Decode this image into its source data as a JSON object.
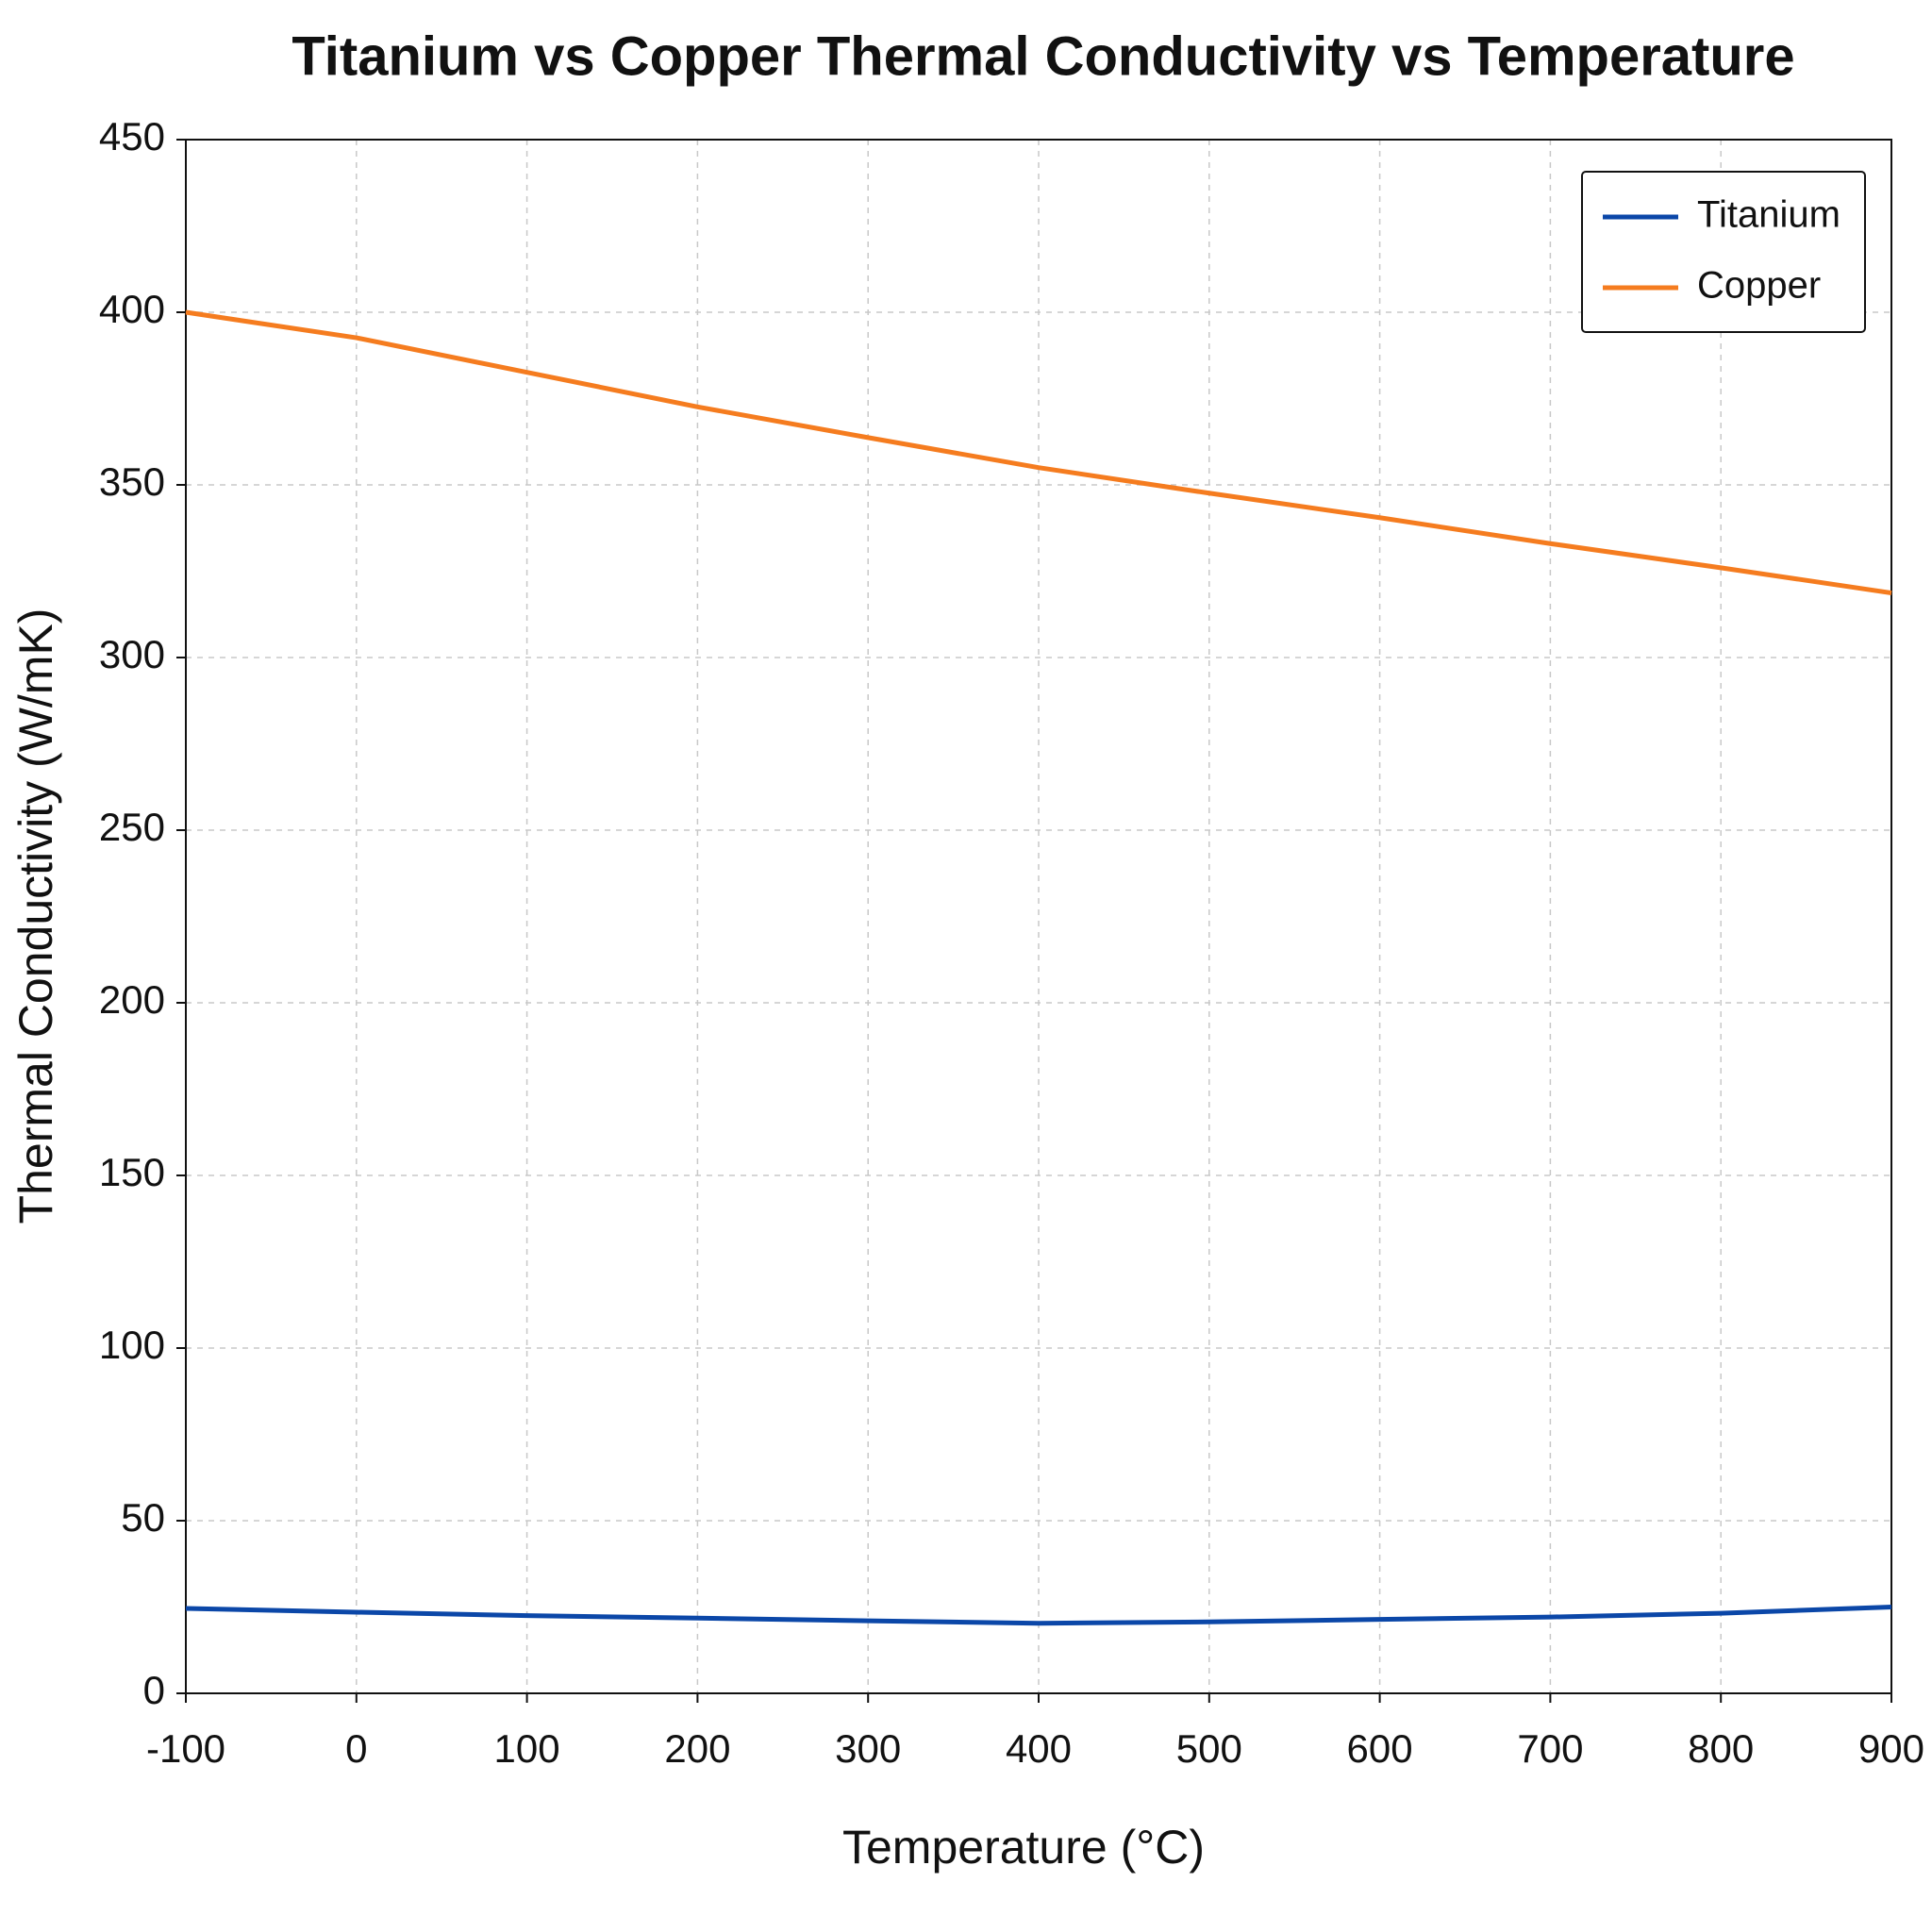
{
  "chart_data": {
    "type": "line",
    "title": "Titanium vs Copper Thermal Conductivity vs Temperature",
    "x_label": "Temperature (°C)",
    "y_label": "Thermal Conductivity (W/mK)",
    "x": [
      -100,
      0,
      100,
      200,
      300,
      400,
      500,
      600,
      700,
      800,
      900
    ],
    "series": [
      {
        "name": "Titanium",
        "color": "#0b47a8",
        "values": [
          24.6,
          23.5,
          22.5,
          21.8,
          21,
          20.3,
          20.7,
          21.4,
          22.1,
          23.2,
          25
        ]
      },
      {
        "name": "Copper",
        "color": "#f57c1f",
        "values": [
          400,
          392.6,
          382.6,
          372.6,
          363.7,
          355,
          347.6,
          340.5,
          333,
          326,
          318.7
        ]
      }
    ],
    "xlim": [
      -100,
      900
    ],
    "xticks": [
      -100,
      0,
      100,
      200,
      300,
      400,
      500,
      600,
      700,
      800,
      900
    ],
    "ylim": [
      0,
      450
    ],
    "yticks": [
      0,
      50,
      100,
      150,
      200,
      250,
      300,
      350,
      400,
      450
    ],
    "grid": true,
    "legend": "upper right"
  }
}
